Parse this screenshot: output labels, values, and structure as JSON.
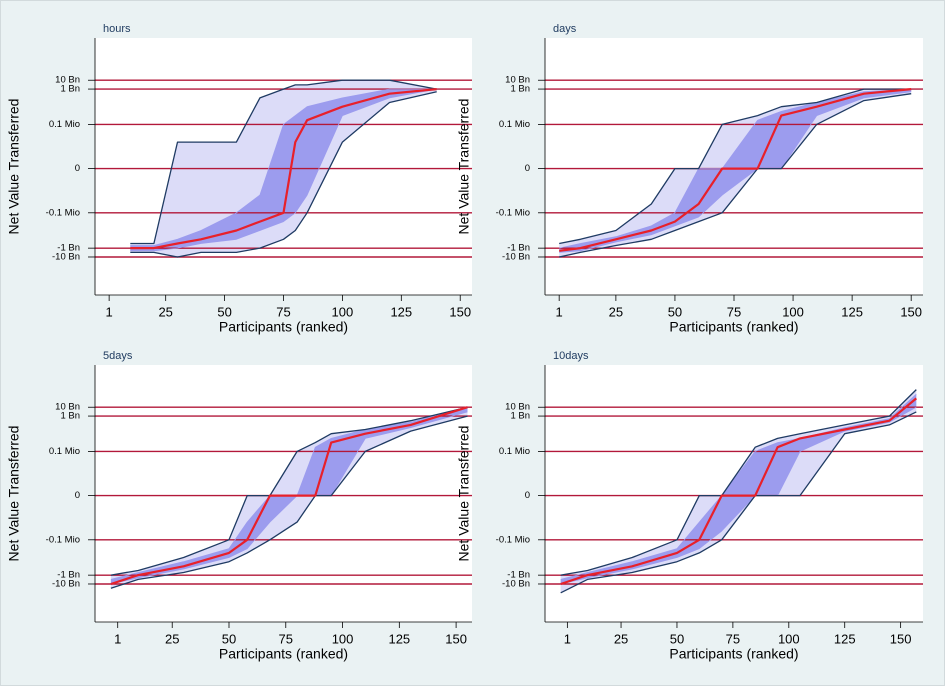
{
  "chart_data": [
    {
      "type": "fan",
      "title": "hours",
      "x_label": "Participants (ranked)",
      "y_label": "Net Value Transferred",
      "x": [
        10,
        20,
        30,
        40,
        55,
        65,
        75,
        80,
        85,
        100,
        120,
        140
      ],
      "envelope_fill": "#dcdcf8",
      "series": [
        {
          "color": "#1f3b63",
          "values": [
            -3000000000.0,
            -3000000000.0,
            -10000000000.0,
            -3000000000.0,
            -3000000000.0,
            -1000000000.0,
            -100000000.0,
            -10000000.0,
            -100000.0,
            1000,
            30000000.0,
            500000000.0
          ]
        },
        {
          "color": "#9c9cee",
          "values": [
            -2000000000.0,
            -2000000000.0,
            -1000000000.0,
            -300000000.0,
            -100000000.0,
            -10000000.0,
            -1000000.0,
            -100000.0,
            -1000,
            1000000.0,
            100000000.0,
            1000000000.0
          ]
        },
        {
          "color": "#e8202a",
          "values": [
            -1000000000.0,
            -1000000000.0,
            -300000000.0,
            -100000000.0,
            -10000000.0,
            -1000000.0,
            -100000.0,
            1000,
            300000.0,
            10000000.0,
            300000000.0,
            1000000000.0
          ]
        },
        {
          "color": "#9c9cee",
          "values": [
            -500000000.0,
            -500000000.0,
            -100000000.0,
            -10000000.0,
            -100000.0,
            -1000,
            100000.0,
            1000000.0,
            10000000.0,
            100000000.0,
            1000000000.0,
            1000000000.0
          ]
        },
        {
          "color": "#1f3b63",
          "values": [
            -300000000.0,
            -300000000.0,
            1000,
            1000,
            1000,
            100000000.0,
            1000000000.0,
            3000000000.0,
            3000000000.0,
            10000000000.0,
            10000000000.0,
            1000000000.0
          ]
        }
      ],
      "xlim": [
        -5,
        155
      ],
      "xticks": [
        1,
        25,
        50,
        75,
        100,
        125,
        150
      ],
      "yscale": "symlog",
      "ylim": [
        -200000000000000.0,
        600000000000000.0
      ],
      "yticks": [
        {
          "value": 10000000000.0,
          "label": "10 Bn"
        },
        {
          "value": 1000000000.0,
          "label": "1 Bn"
        },
        {
          "value": 100000.0,
          "label": "0.1 Mio"
        },
        0,
        {
          "value": -100000.0,
          "label": "-0.1 Mio"
        },
        {
          "value": -1000000000.0,
          "label": "-1 Bn"
        },
        {
          "value": -10000000000.0,
          "label": "-10 Bn"
        }
      ],
      "grid": true,
      "grid_color": "#b2183a"
    },
    {
      "type": "fan",
      "title": "days",
      "x_label": "Participants (ranked)",
      "y_label": "Net Value Transferred",
      "x": [
        1,
        10,
        25,
        40,
        50,
        60,
        70,
        85,
        95,
        110,
        130,
        150
      ],
      "envelope_fill": "#dcdcf8",
      "series": [
        {
          "color": "#1f3b63",
          "values": [
            -10000000000.0,
            -3000000000.0,
            -500000000.0,
            -100000000.0,
            -10000000.0,
            -1000000.0,
            -100000.0,
            0,
            0,
            100000.0,
            50000000.0,
            300000000.0
          ]
        },
        {
          "color": "#9c9cee",
          "values": [
            -3000000000.0,
            -2000000000.0,
            -200000000.0,
            -30000000.0,
            -3000000.0,
            -300000.0,
            -1000,
            0,
            0,
            1000000.0,
            100000000.0,
            500000000.0
          ]
        },
        {
          "color": "#e8202a",
          "values": [
            -2000000000.0,
            -1000000000.0,
            -100000000.0,
            -10000000.0,
            -1000000.0,
            -10000.0,
            0,
            0,
            1000000.0,
            10000000.0,
            300000000.0,
            1000000000.0
          ]
        },
        {
          "color": "#9c9cee",
          "values": [
            -1000000000.0,
            -300000000.0,
            -50000000.0,
            -3000000.0,
            -100000.0,
            0,
            0,
            300000.0,
            3000000.0,
            30000000.0,
            500000000.0,
            1000000000.0
          ]
        },
        {
          "color": "#1f3b63",
          "values": [
            -300000000.0,
            -100000000.0,
            -10000000.0,
            -10000.0,
            0,
            0,
            100000.0,
            1000000.0,
            10000000.0,
            30000000.0,
            1000000000.0,
            1000000000.0
          ]
        }
      ],
      "xlim": [
        -5,
        155
      ],
      "xticks": [
        1,
        25,
        50,
        75,
        100,
        125,
        150
      ],
      "yscale": "symlog",
      "ylim": [
        -200000000000000.0,
        600000000000000.0
      ],
      "yticks": [
        {
          "value": 10000000000.0,
          "label": "10 Bn"
        },
        {
          "value": 1000000000.0,
          "label": "1 Bn"
        },
        {
          "value": 100000.0,
          "label": "0.1 Mio"
        },
        0,
        {
          "value": -100000.0,
          "label": "-0.1 Mio"
        },
        {
          "value": -1000000000.0,
          "label": "-1 Bn"
        },
        {
          "value": -10000000000.0,
          "label": "-10 Bn"
        }
      ],
      "grid": true,
      "grid_color": "#b2183a"
    },
    {
      "type": "fan",
      "title": "5days",
      "x_label": "Participants (ranked)",
      "y_label": "Net Value Transferred",
      "x": [
        -2,
        10,
        30,
        50,
        58,
        68,
        80,
        88,
        95,
        110,
        130,
        155
      ],
      "envelope_fill": "#dcdcf8",
      "series": [
        {
          "color": "#1f3b63",
          "values": [
            -30000000000.0,
            -3000000000.0,
            -500000000.0,
            -30000000.0,
            -3000000.0,
            -100000.0,
            -1000,
            0,
            0,
            100000.0,
            20000000.0,
            1000000000.0
          ]
        },
        {
          "color": "#9c9cee",
          "values": [
            -10000000000.0,
            -2000000000.0,
            -200000000.0,
            -10000000.0,
            -1000000.0,
            -1000,
            0,
            0,
            0,
            3000000.0,
            50000000.0,
            3000000000.0
          ]
        },
        {
          "color": "#e8202a",
          "values": [
            -10000000000.0,
            -1000000000.0,
            -100000000.0,
            -3000000.0,
            -100000.0,
            0,
            0,
            0,
            1000000.0,
            10000000.0,
            100000000.0,
            10000000000.0
          ]
        },
        {
          "color": "#9c9cee",
          "values": [
            -3000000000.0,
            -500000000.0,
            -30000000.0,
            -1000000.0,
            -1000,
            0,
            0,
            300000.0,
            3000000.0,
            30000000.0,
            200000000.0,
            10000000000.0
          ]
        },
        {
          "color": "#1f3b63",
          "values": [
            -1000000000.0,
            -300000000.0,
            -10000000.0,
            -100000.0,
            0,
            0,
            100000.0,
            1000000.0,
            10000000.0,
            30000000.0,
            300000000.0,
            10000000000.0
          ]
        }
      ],
      "xlim": [
        -9,
        157
      ],
      "xticks": [
        1,
        25,
        50,
        75,
        100,
        125,
        150
      ],
      "yscale": "symlog",
      "ylim": [
        -200000000000000.0,
        600000000000000.0
      ],
      "yticks": [
        {
          "value": 10000000000.0,
          "label": "10 Bn"
        },
        {
          "value": 1000000000.0,
          "label": "1 Bn"
        },
        {
          "value": 100000.0,
          "label": "0.1 Mio"
        },
        0,
        {
          "value": -100000.0,
          "label": "-0.1 Mio"
        },
        {
          "value": -1000000000.0,
          "label": "-1 Bn"
        },
        {
          "value": -10000000000.0,
          "label": "-10 Bn"
        }
      ],
      "grid": true,
      "grid_color": "#b2183a"
    },
    {
      "type": "fan",
      "title": "10days",
      "x_label": "Participants (ranked)",
      "y_label": "Net Value Transferred",
      "x": [
        -2,
        10,
        30,
        50,
        60,
        70,
        85,
        95,
        105,
        125,
        145,
        157
      ],
      "envelope_fill": "#dcdcf8",
      "series": [
        {
          "color": "#1f3b63",
          "values": [
            -100000000000.0,
            -3000000000.0,
            -500000000.0,
            -30000000.0,
            -3000000.0,
            -100000.0,
            0,
            0,
            0,
            10000000.0,
            100000000.0,
            3000000000.0
          ]
        },
        {
          "color": "#9c9cee",
          "values": [
            -10000000000.0,
            -2000000000.0,
            -200000000.0,
            -10000000.0,
            -1000000.0,
            -10000.0,
            0,
            0,
            100000.0,
            20000000.0,
            200000000.0,
            10000000000.0
          ]
        },
        {
          "color": "#e8202a",
          "values": [
            -10000000000.0,
            -1000000000.0,
            -100000000.0,
            -3000000.0,
            -100000.0,
            0,
            0,
            300000.0,
            3000000.0,
            30000000.0,
            300000000.0,
            100000000000.0
          ]
        },
        {
          "color": "#9c9cee",
          "values": [
            -3000000000.0,
            -500000000.0,
            -30000000.0,
            -1000000.0,
            -1000,
            0,
            100000.0,
            1000000.0,
            3000000.0,
            50000000.0,
            500000000.0,
            300000000000.0
          ]
        },
        {
          "color": "#1f3b63",
          "values": [
            -1000000000.0,
            -300000000.0,
            -10000000.0,
            -100000.0,
            0,
            0,
            300000.0,
            3000000.0,
            10000000.0,
            100000000.0,
            1000000000.0,
            1000000000000.0
          ]
        }
      ],
      "xlim": [
        -9,
        160
      ],
      "xticks": [
        1,
        25,
        50,
        75,
        100,
        125,
        150
      ],
      "yscale": "symlog",
      "ylim": [
        -200000000000000.0,
        600000000000000.0
      ],
      "yticks": [
        {
          "value": 10000000000.0,
          "label": "10 Bn"
        },
        {
          "value": 1000000000.0,
          "label": "1 Bn"
        },
        {
          "value": 100000.0,
          "label": "0.1 Mio"
        },
        0,
        {
          "value": -100000.0,
          "label": "-0.1 Mio"
        },
        {
          "value": -1000000000.0,
          "label": "-1 Bn"
        },
        {
          "value": -10000000000.0,
          "label": "-10 Bn"
        }
      ],
      "grid": true,
      "grid_color": "#b2183a"
    }
  ]
}
